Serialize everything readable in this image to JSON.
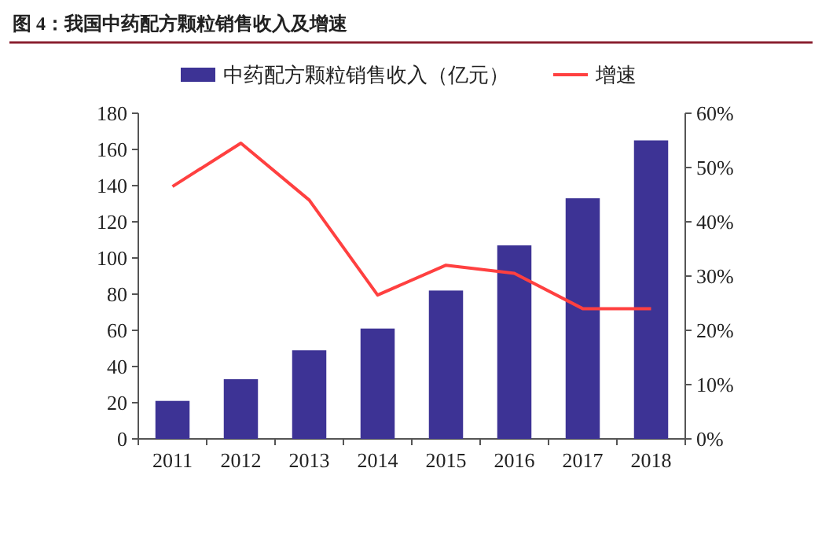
{
  "chart_data": {
    "type": "bar",
    "title": "图 4：我国中药配方颗粒销售收入及增速",
    "categories": [
      "2011",
      "2012",
      "2013",
      "2014",
      "2015",
      "2016",
      "2017",
      "2018"
    ],
    "series": [
      {
        "name": "中药配方颗粒销售收入（亿元）",
        "color": "#3d3395",
        "values": [
          21,
          33,
          49,
          61,
          82,
          107,
          133,
          165
        ]
      },
      {
        "name": "增速",
        "type": "line",
        "axis": "y2",
        "color": "#ff4040",
        "values": [
          46.5,
          54.5,
          44,
          26.5,
          32,
          30.5,
          24,
          24
        ]
      }
    ],
    "ylim": [
      0,
      180
    ],
    "yticks": [
      0,
      20,
      40,
      60,
      80,
      100,
      120,
      140,
      160,
      180
    ],
    "y2lim": [
      0,
      60
    ],
    "y2ticks": [
      {
        "value": 0,
        "label": "0%"
      },
      {
        "value": 10,
        "label": "10%"
      },
      {
        "value": 20,
        "label": "20%"
      },
      {
        "value": 30,
        "label": "30%"
      },
      {
        "value": 40,
        "label": "40%"
      },
      {
        "value": 50,
        "label": "50%"
      },
      {
        "value": 60,
        "label": "60%"
      }
    ],
    "legend": "top",
    "grid": false,
    "marker": "none",
    "line_style": "solid"
  }
}
